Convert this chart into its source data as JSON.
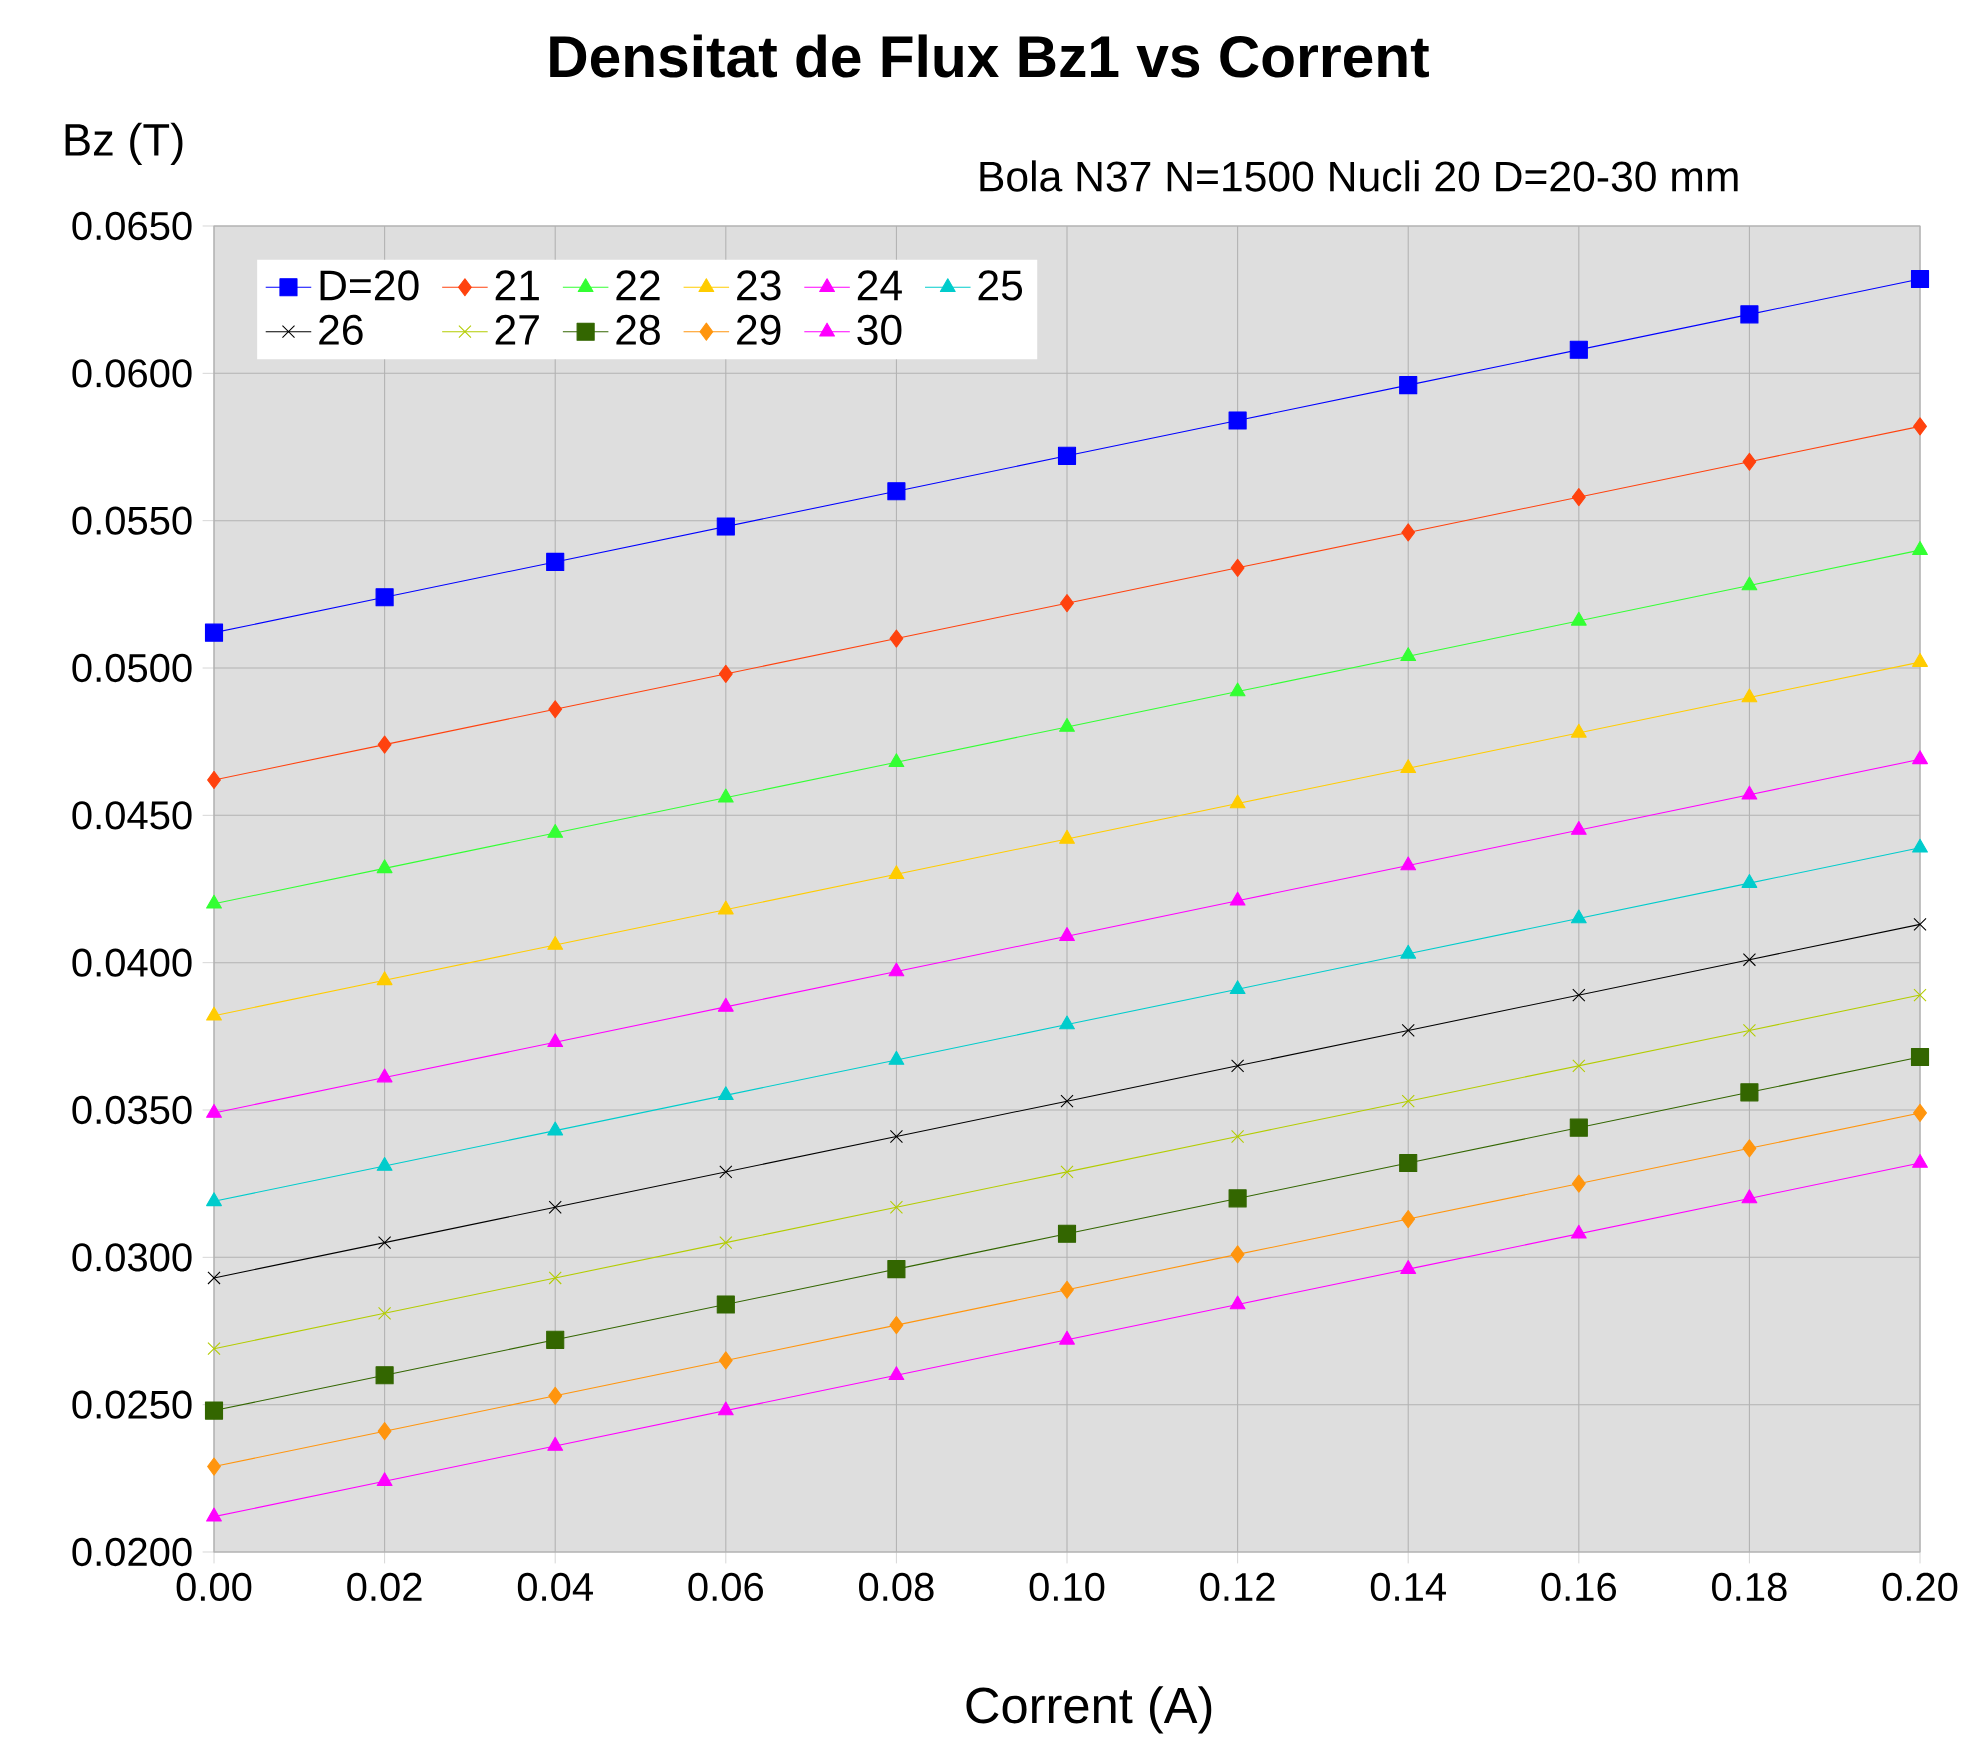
{
  "chart_data": {
    "type": "line",
    "title": "Densitat de Flux Bz1 vs Corrent",
    "subtitle": "Bola N37  N=1500  Nucli 20  D=20-30 mm",
    "xlabel": "Corrent (A)",
    "ylabel": "Bz (T)",
    "x": [
      0.0,
      0.02,
      0.04,
      0.06,
      0.08,
      0.1,
      0.12,
      0.14,
      0.16,
      0.18,
      0.2
    ],
    "xlim": [
      0,
      0.2
    ],
    "xticks": [
      {
        "value": 0,
        "label": "0.00"
      },
      {
        "value": 0.02,
        "label": "0.02"
      },
      {
        "value": 0.04,
        "label": "0.04"
      },
      {
        "value": 0.06,
        "label": "0.06"
      },
      {
        "value": 0.08,
        "label": "0.08"
      },
      {
        "value": 0.1,
        "label": "0.10"
      },
      {
        "value": 0.12,
        "label": "0.12"
      },
      {
        "value": 0.14,
        "label": "0.14"
      },
      {
        "value": 0.16,
        "label": "0.16"
      },
      {
        "value": 0.18,
        "label": "0.18"
      },
      {
        "value": 0.2,
        "label": "0.20"
      }
    ],
    "ylim": [
      0.02,
      0.065
    ],
    "yticks": [
      {
        "value": 0.02,
        "label": "0.0200"
      },
      {
        "value": 0.025,
        "label": "0.0250"
      },
      {
        "value": 0.03,
        "label": "0.0300"
      },
      {
        "value": 0.035,
        "label": "0.0350"
      },
      {
        "value": 0.04,
        "label": "0.0400"
      },
      {
        "value": 0.045,
        "label": "0.0450"
      },
      {
        "value": 0.05,
        "label": "0.0500"
      },
      {
        "value": 0.055,
        "label": "0.0550"
      },
      {
        "value": 0.06,
        "label": "0.0600"
      },
      {
        "value": 0.065,
        "label": "0.0650"
      }
    ],
    "grid": true,
    "legend": "top left",
    "series": [
      {
        "name": "D=20",
        "color": "#0000ff",
        "marker": "square",
        "values": [
          0.0512,
          0.0524,
          0.0536,
          0.0548,
          0.056,
          0.0572,
          0.0584,
          0.0596,
          0.0608,
          0.062,
          0.0632
        ]
      },
      {
        "name": "21",
        "color": "#ff420e",
        "marker": "diamond",
        "values": [
          0.0462,
          0.0474,
          0.0486,
          0.0498,
          0.051,
          0.0522,
          0.0534,
          0.0546,
          0.0558,
          0.057,
          0.0582
        ]
      },
      {
        "name": "22",
        "color": "#33ff33",
        "marker": "triangle",
        "values": [
          0.042,
          0.0432,
          0.0444,
          0.0456,
          0.0468,
          0.048,
          0.0492,
          0.0504,
          0.0516,
          0.0528,
          0.054
        ]
      },
      {
        "name": "23",
        "color": "#ffcc00",
        "marker": "triangle",
        "values": [
          0.0382,
          0.0394,
          0.0406,
          0.0418,
          0.043,
          0.0442,
          0.0454,
          0.0466,
          0.0478,
          0.049,
          0.0502
        ]
      },
      {
        "name": "24",
        "color": "#ff00ff",
        "marker": "triangle",
        "values": [
          0.0349,
          0.0361,
          0.0373,
          0.0385,
          0.0397,
          0.0409,
          0.0421,
          0.0433,
          0.0445,
          0.0457,
          0.0469
        ]
      },
      {
        "name": "25",
        "color": "#00cccc",
        "marker": "triangle",
        "values": [
          0.0319,
          0.0331,
          0.0343,
          0.0355,
          0.0367,
          0.0379,
          0.0391,
          0.0403,
          0.0415,
          0.0427,
          0.0439
        ]
      },
      {
        "name": "26",
        "color": "#000000",
        "marker": "cross",
        "values": [
          0.0293,
          0.0305,
          0.0317,
          0.0329,
          0.0341,
          0.0353,
          0.0365,
          0.0377,
          0.0389,
          0.0401,
          0.0413
        ]
      },
      {
        "name": "27",
        "color": "#b3cc00",
        "marker": "cross",
        "values": [
          0.0269,
          0.0281,
          0.0293,
          0.0305,
          0.0317,
          0.0329,
          0.0341,
          0.0353,
          0.0365,
          0.0377,
          0.0389
        ]
      },
      {
        "name": "28",
        "color": "#336600",
        "marker": "square",
        "values": [
          0.0248,
          0.026,
          0.0272,
          0.0284,
          0.0296,
          0.0308,
          0.032,
          0.0332,
          0.0344,
          0.0356,
          0.0368
        ]
      },
      {
        "name": "29",
        "color": "#ff950e",
        "marker": "diamond",
        "values": [
          0.0229,
          0.0241,
          0.0253,
          0.0265,
          0.0277,
          0.0289,
          0.0301,
          0.0313,
          0.0325,
          0.0337,
          0.0349
        ]
      },
      {
        "name": "30",
        "color": "#ff00ff",
        "marker": "triangle",
        "values": [
          0.0212,
          0.0224,
          0.0236,
          0.0248,
          0.026,
          0.0272,
          0.0284,
          0.0296,
          0.0308,
          0.032,
          0.0332
        ]
      }
    ]
  }
}
